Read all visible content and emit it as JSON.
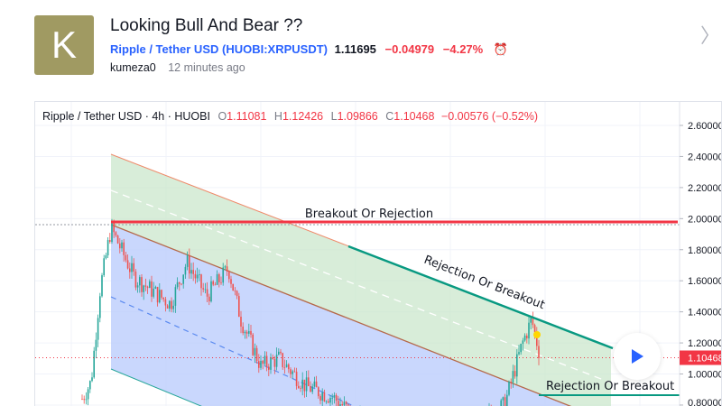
{
  "idea": {
    "avatar_letter": "K",
    "title": "Looking Bull And Bear ??",
    "symbol_name": "Ripple / Tether USD",
    "symbol_code": "(HUOBI:XRPUSDT)",
    "price": "1.11695",
    "change": "−0.04979",
    "change_pct": "−4.27%",
    "author": "kumeza0",
    "time": "12 minutes ago"
  },
  "legend": {
    "title": "Ripple / Tether USD · 4h · HUOBI",
    "o_label": "O",
    "o": "1.11081",
    "h_label": "H",
    "h": "1.12426",
    "l_label": "L",
    "l": "1.09866",
    "c_label": "C",
    "c": "1.10468",
    "chg": "−0.00576 (−0.52%)"
  },
  "chart_data": {
    "type": "candlestick",
    "y_ticks": [
      "2.600000",
      "2.400000",
      "2.200000",
      "2.000000",
      "1.800000",
      "1.600000",
      "1.400000",
      "1.200000",
      "1.000000",
      "0.800000"
    ],
    "ylim": [
      0.78,
      2.72
    ],
    "last_price_label": "1.104680",
    "annotations": [
      "Breakout Or Rejection",
      "Rejection Or Breakout",
      "Rejection Or Breakout"
    ],
    "price_path": [
      0.84,
      0.95,
      1.55,
      1.94,
      1.62,
      1.45,
      1.72,
      1.5,
      1.68,
      1.35,
      1.05,
      1.1,
      0.92,
      0.85,
      0.7,
      0.6,
      0.65,
      0.8,
      1.2,
      1.35,
      1.1
    ],
    "colors": {
      "up": "#26a69a",
      "down": "#ef5350",
      "resistance": "#f23645",
      "channel_top": "#089981",
      "channel_fill": "#c8e6c9",
      "lower_fill": "#bbcdfd"
    }
  }
}
